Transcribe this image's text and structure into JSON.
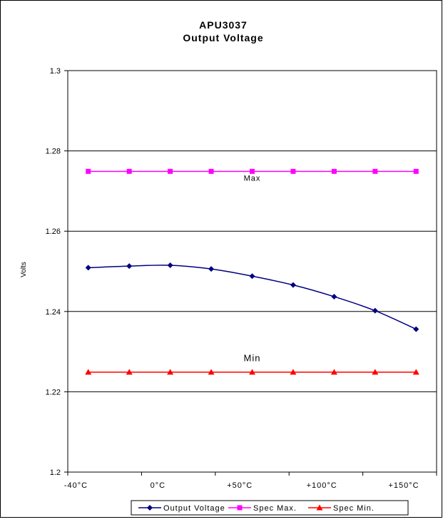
{
  "chart_data": {
    "type": "line",
    "title": "APU3037",
    "subtitle": "Output Voltage",
    "ylabel": "Volts",
    "xlabel": "",
    "ylim": [
      1.2,
      1.3
    ],
    "yticks": [
      1.2,
      1.22,
      1.24,
      1.26,
      1.28,
      1.3
    ],
    "ytick_labels": [
      "1.2",
      "1.22",
      "1.24",
      "1.26",
      "1.28",
      "1.3"
    ],
    "grid": true,
    "xtick_labels": [
      "-40°C",
      "0°C",
      "+50°C",
      "+100°C",
      "+150°C"
    ],
    "x": [
      -40,
      -15,
      10,
      35,
      60,
      85,
      110,
      135,
      160
    ],
    "xlim": [
      -52.5,
      172.5
    ],
    "xtick_values": [
      -47.5,
      2.5,
      52.5,
      102.5,
      152.5
    ],
    "series": [
      {
        "name": "Output Voltage",
        "color": "#000080",
        "marker": "diamond",
        "smooth": true,
        "values": [
          1.2509,
          1.2513,
          1.2515,
          1.2506,
          1.2488,
          1.2466,
          1.2437,
          1.2402,
          1.2356
        ]
      },
      {
        "name": "Spec Max.",
        "color": "#FF00FF",
        "marker": "square",
        "values": [
          1.2749,
          1.2749,
          1.2749,
          1.2749,
          1.2749,
          1.2749,
          1.2749,
          1.2749,
          1.2749
        ]
      },
      {
        "name": "Spec Min.",
        "color": "#FF0000",
        "marker": "triangle",
        "values": [
          1.2249,
          1.2249,
          1.2249,
          1.2249,
          1.2249,
          1.2249,
          1.2249,
          1.2249,
          1.2249
        ]
      }
    ],
    "annotations": [
      {
        "text": "Max",
        "x": 60,
        "y": 1.2726
      },
      {
        "text": "Min",
        "x": 60,
        "y": 1.2276
      }
    ],
    "legend_position": "bottom"
  }
}
